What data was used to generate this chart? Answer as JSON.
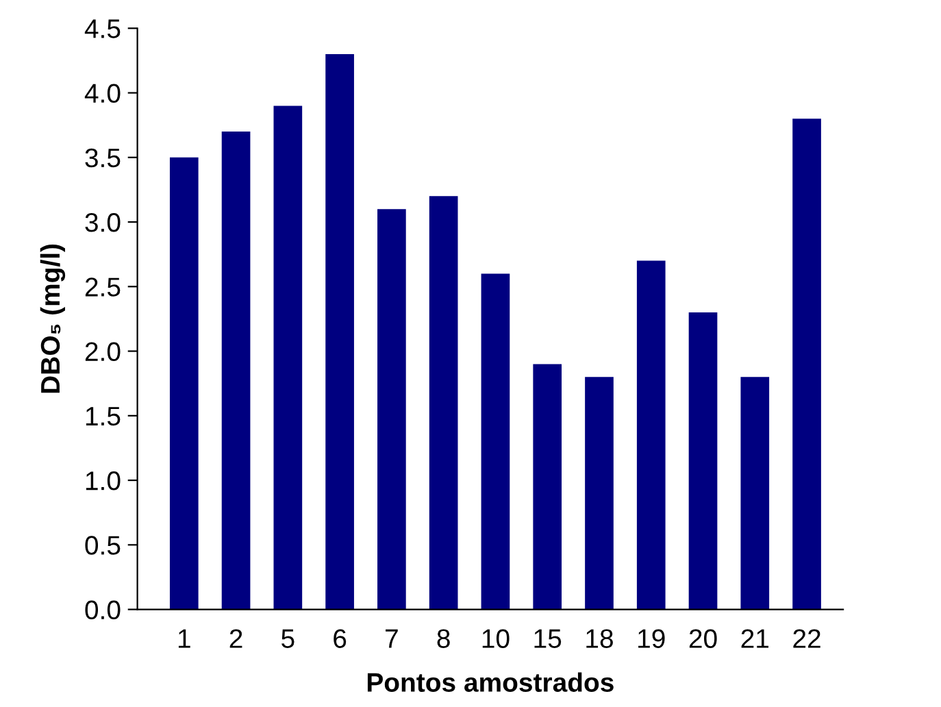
{
  "chart_data": {
    "type": "bar",
    "xlabel": "Pontos amostrados",
    "ylabel": "DBO₅ (mg/l)",
    "categories": [
      "1",
      "2",
      "5",
      "6",
      "7",
      "8",
      "10",
      "15",
      "18",
      "19",
      "20",
      "21",
      "22"
    ],
    "values": [
      3.5,
      3.7,
      3.9,
      4.3,
      3.1,
      3.2,
      2.6,
      1.9,
      1.8,
      2.7,
      2.3,
      1.8,
      3.8
    ],
    "color": "#000080",
    "ylim": [
      0,
      4.5
    ],
    "yticks": [
      {
        "value": 0,
        "label": "0.0"
      },
      {
        "value": 0.5,
        "label": "0.5"
      },
      {
        "value": 1,
        "label": "1.0"
      },
      {
        "value": 1.5,
        "label": "1.5"
      },
      {
        "value": 2,
        "label": "2.0"
      },
      {
        "value": 2.5,
        "label": "2.5"
      },
      {
        "value": 3,
        "label": "3.0"
      },
      {
        "value": 3.5,
        "label": "3.5"
      },
      {
        "value": 4,
        "label": "4.0"
      },
      {
        "value": 4.5,
        "label": "4.5"
      }
    ],
    "grid": false,
    "legend": false
  }
}
